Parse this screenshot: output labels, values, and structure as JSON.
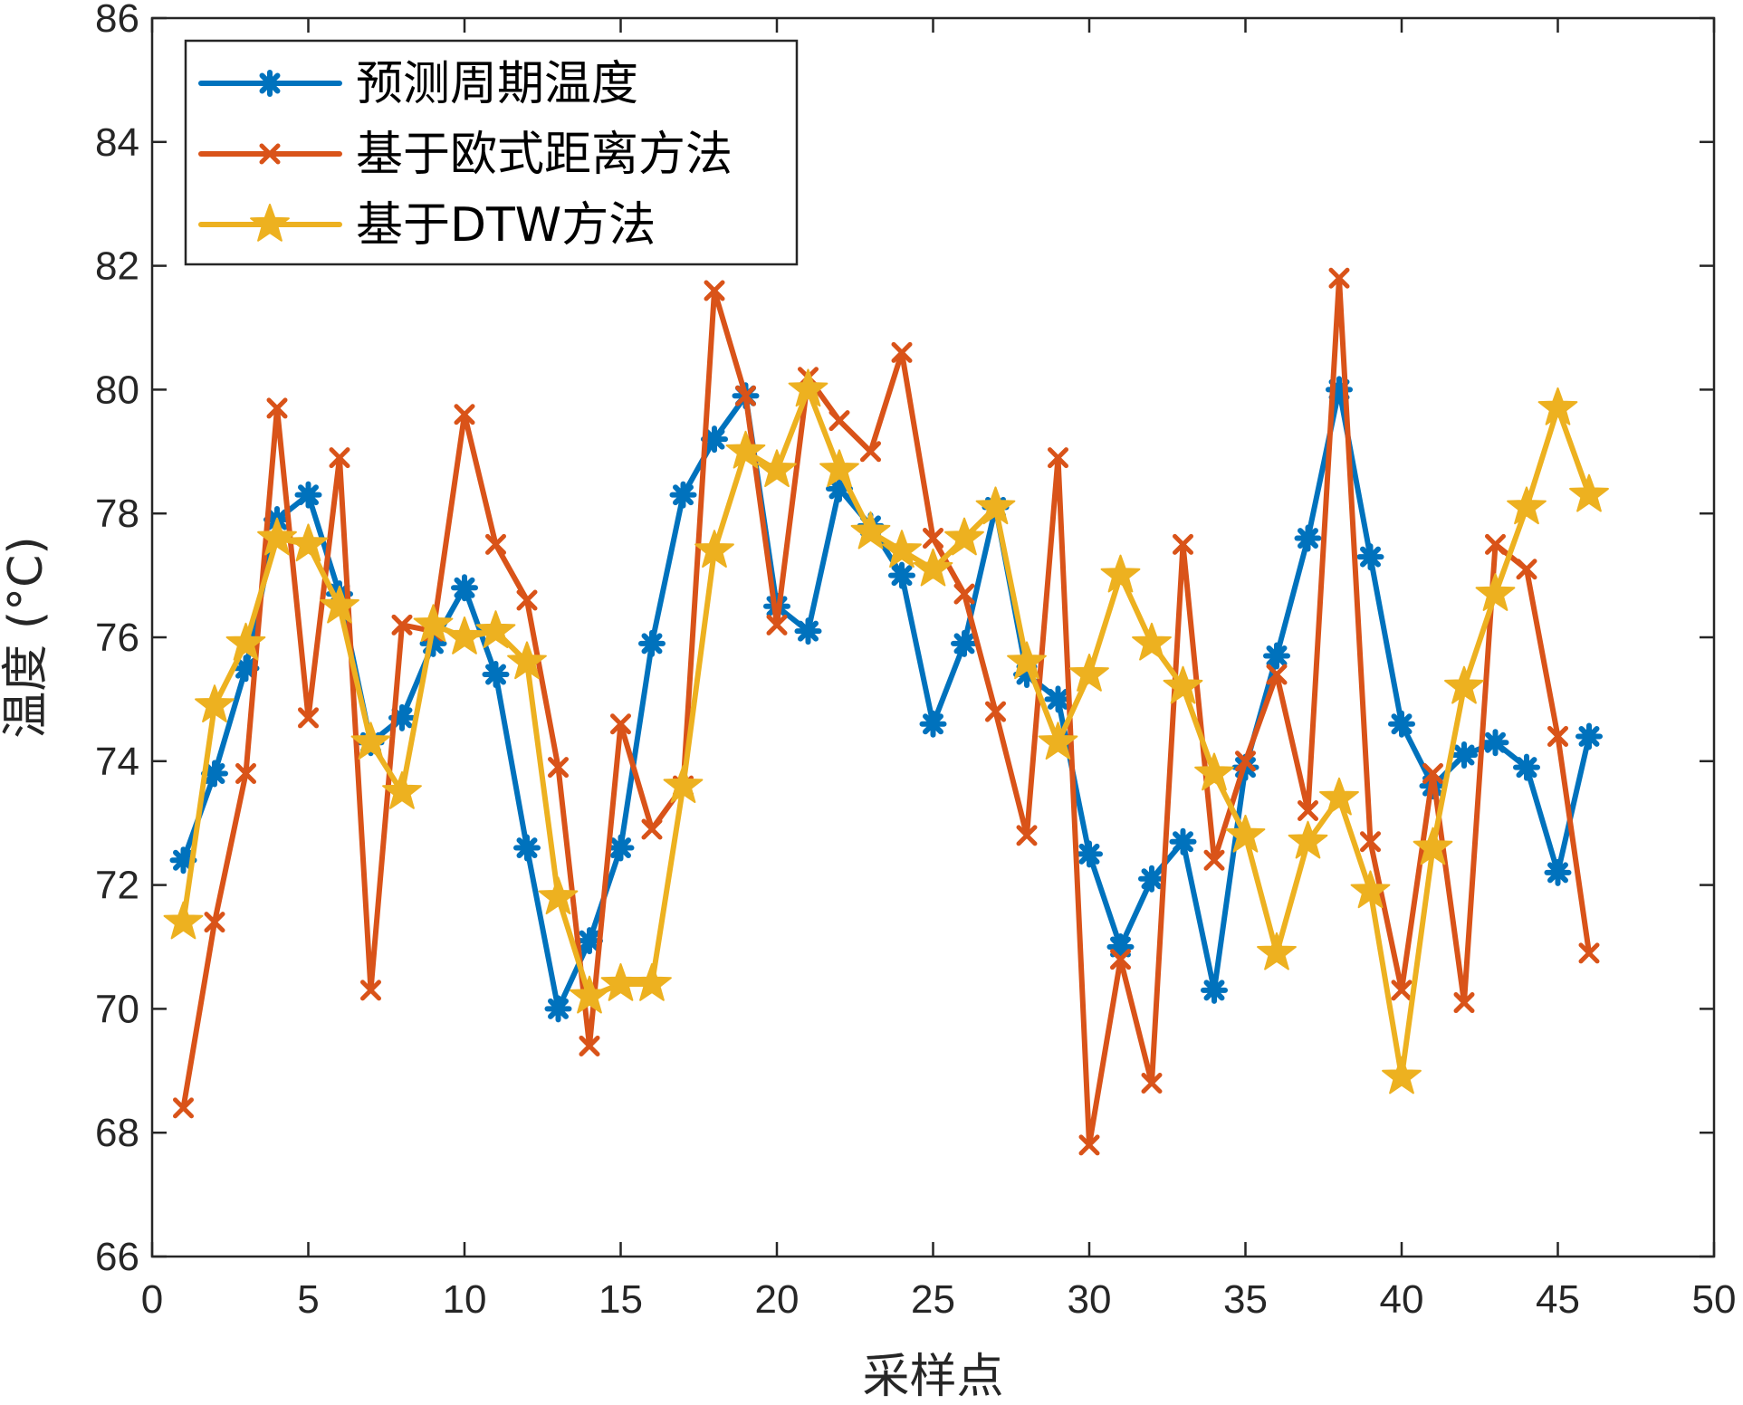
{
  "chart_data": {
    "type": "line",
    "xlabel": "采样点",
    "ylabel": "温度 (°C)",
    "xlim": [
      0,
      50
    ],
    "ylim": [
      66,
      86
    ],
    "xticks": [
      0,
      5,
      10,
      15,
      20,
      25,
      30,
      35,
      40,
      45,
      50
    ],
    "yticks": [
      66,
      68,
      70,
      72,
      74,
      76,
      78,
      80,
      82,
      84,
      86
    ],
    "grid": false,
    "legend_position": "top-left",
    "x": [
      1,
      2,
      3,
      4,
      5,
      6,
      7,
      8,
      9,
      10,
      11,
      12,
      13,
      14,
      15,
      16,
      17,
      18,
      19,
      20,
      21,
      22,
      23,
      24,
      25,
      26,
      27,
      28,
      29,
      30,
      31,
      32,
      33,
      34,
      35,
      36,
      37,
      38,
      39,
      40,
      41,
      42,
      43,
      44,
      45,
      46
    ],
    "series": [
      {
        "name": "预测周期温度",
        "color": "#0072BD",
        "marker": "asterisk",
        "values": [
          72.4,
          73.8,
          75.5,
          77.9,
          78.3,
          76.7,
          74.3,
          74.7,
          75.9,
          76.8,
          75.4,
          72.6,
          70.0,
          71.1,
          72.6,
          75.9,
          78.3,
          79.2,
          79.9,
          76.5,
          76.1,
          78.4,
          77.8,
          77.0,
          74.6,
          75.9,
          78.1,
          75.4,
          75.0,
          72.5,
          71.0,
          72.1,
          72.7,
          70.3,
          73.9,
          75.7,
          77.6,
          80.0,
          77.3,
          74.6,
          73.6,
          74.1,
          74.3,
          73.9,
          72.2,
          74.4
        ]
      },
      {
        "name": "基于欧式距离方法",
        "color": "#D95319",
        "marker": "x",
        "values": [
          68.4,
          71.4,
          73.8,
          79.7,
          74.7,
          78.9,
          70.3,
          76.2,
          76.1,
          79.6,
          77.5,
          76.6,
          73.9,
          69.4,
          74.6,
          72.9,
          73.6,
          81.6,
          79.9,
          76.2,
          80.2,
          79.5,
          79.0,
          80.6,
          77.6,
          76.7,
          74.8,
          72.8,
          78.9,
          67.8,
          70.8,
          68.8,
          77.5,
          72.4,
          74.0,
          75.4,
          73.2,
          81.8,
          72.7,
          70.3,
          73.8,
          70.1,
          77.5,
          77.1,
          74.4,
          70.9
        ]
      },
      {
        "name": "基于DTW方法",
        "color": "#EDB120",
        "marker": "pentagram",
        "values": [
          71.4,
          74.9,
          75.9,
          77.6,
          77.5,
          76.5,
          74.3,
          73.5,
          76.2,
          76.0,
          76.1,
          75.6,
          71.8,
          70.2,
          70.4,
          70.4,
          73.6,
          77.4,
          79.0,
          78.7,
          80.0,
          78.7,
          77.7,
          77.4,
          77.1,
          77.6,
          78.1,
          75.6,
          74.3,
          75.4,
          77.0,
          75.9,
          75.2,
          73.8,
          72.8,
          70.9,
          72.7,
          73.4,
          71.9,
          68.9,
          72.6,
          75.2,
          76.7,
          78.1,
          79.7,
          78.3
        ]
      }
    ]
  }
}
